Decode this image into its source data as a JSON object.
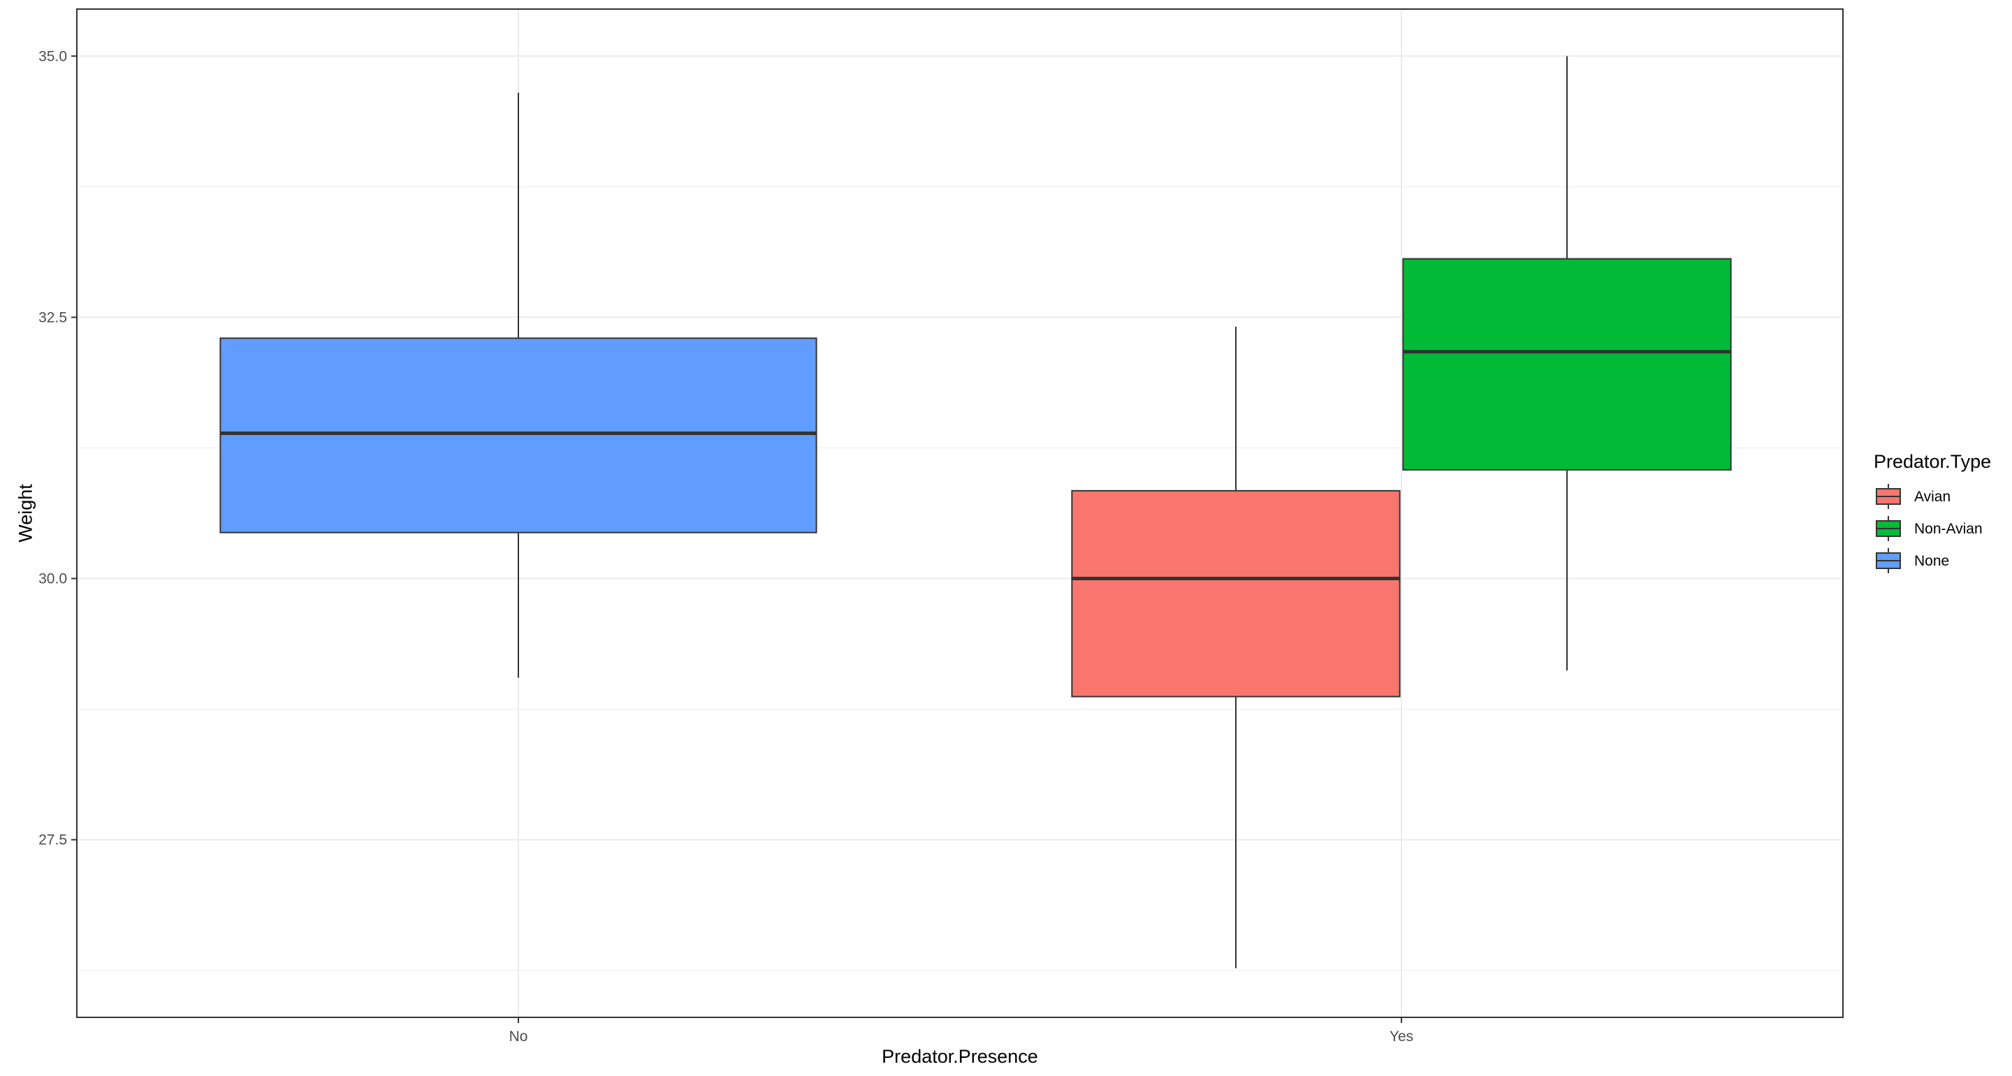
{
  "chart_data": {
    "type": "boxplot",
    "title": "",
    "xlabel": "Predator.Presence",
    "ylabel": "Weight",
    "categories": [
      "No",
      "Yes"
    ],
    "y_ticks": [
      27.5,
      30.0,
      32.5,
      35.0
    ],
    "y_tick_labels": [
      "27.5",
      "30.0",
      "32.5",
      "35.0"
    ],
    "ylim": [
      25.8,
      35.45
    ],
    "grid": true,
    "legend": {
      "title": "Predator.Type",
      "position": "right",
      "entries": [
        {
          "label": "Avian",
          "color": "#F8766D"
        },
        {
          "label": "Non-Avian",
          "color": "#00BA38"
        },
        {
          "label": "None",
          "color": "#619CFF"
        }
      ]
    },
    "boxes": [
      {
        "category": "No",
        "group": "None",
        "color": "#619CFF",
        "min": 29.05,
        "q1": 30.44,
        "median": 31.39,
        "q3": 32.3,
        "max": 34.65
      },
      {
        "category": "Yes",
        "group": "Avian",
        "color": "#F8766D",
        "min": 26.27,
        "q1": 28.87,
        "median": 30.0,
        "q3": 30.84,
        "max": 32.41
      },
      {
        "category": "Yes",
        "group": "Non-Avian",
        "color": "#00BA38",
        "min": 29.12,
        "q1": 31.04,
        "median": 32.17,
        "q3": 33.06,
        "max": 35.0
      }
    ]
  }
}
